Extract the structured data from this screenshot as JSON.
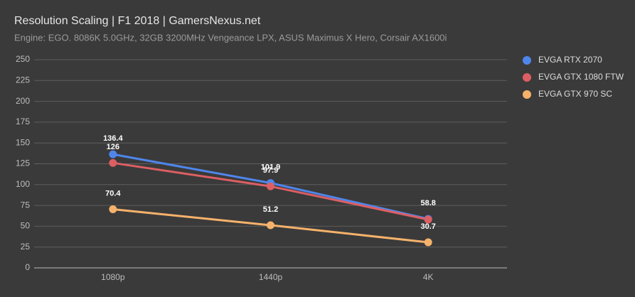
{
  "chart_data": {
    "type": "line",
    "title": "Resolution Scaling | F1 2018 | GamersNexus.net",
    "subtitle": "Engine: EGO. 8086K 5.0GHz, 32GB 3200MHz Vengeance LPX, ASUS Maximus X Hero, Corsair AX1600i",
    "categories": [
      "1080p",
      "1440p",
      "4K"
    ],
    "series": [
      {
        "name": "EVGA RTX 2070",
        "color": "#4f86ec",
        "values": [
          136.4,
          101.9,
          58.8
        ]
      },
      {
        "name": "EVGA GTX 1080 FTW",
        "color": "#dc5f63",
        "values": [
          126,
          97.9,
          58
        ],
        "value_labels": [
          "126",
          "97.9",
          null
        ]
      },
      {
        "name": "EVGA GTX 970 SC",
        "color": "#f6b26b",
        "values": [
          70.4,
          51.2,
          30.7
        ]
      }
    ],
    "ylim": [
      0,
      250
    ],
    "yticks": [
      0,
      25,
      50,
      75,
      100,
      125,
      150,
      175,
      200,
      225,
      250
    ],
    "grid": true,
    "legend": "right"
  }
}
